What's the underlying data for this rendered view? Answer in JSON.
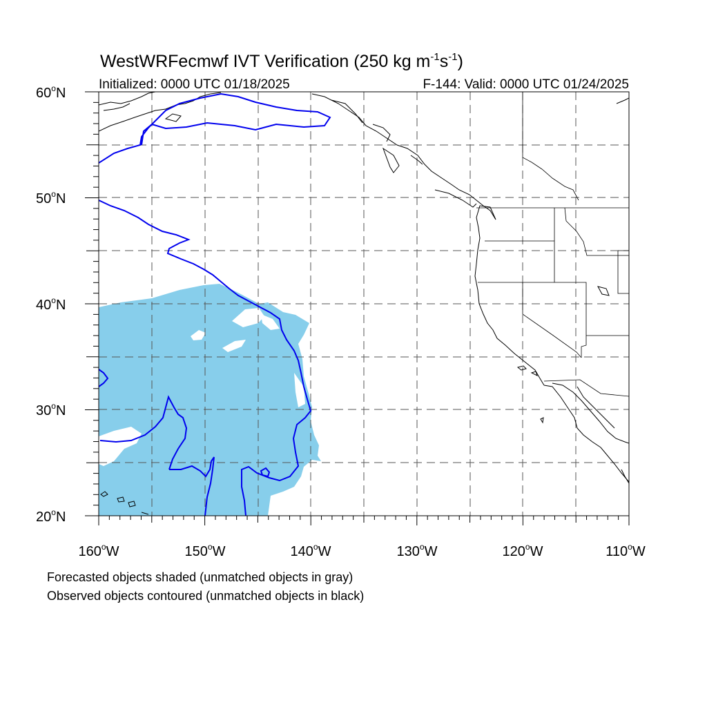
{
  "title": {
    "main_prefix": "WestWRFecmwf IVT Verification (250 kg m",
    "exp1": "-1",
    "mid": "s",
    "exp2": "-1",
    "close": ")"
  },
  "subtitle_left": "Initialized: 0000 UTC 01/18/2025",
  "subtitle_right": "F-144: Valid: 0000 UTC 01/24/2025",
  "lat_labels": [
    "60",
    "50",
    "40",
    "30",
    "20"
  ],
  "lat_suffix": "N",
  "lon_labels": [
    "160",
    "150",
    "140",
    "130",
    "120",
    "110"
  ],
  "lon_suffix": "W",
  "degree_symbol": "o",
  "notes": {
    "forecast": "Forecasted objects shaded (unmatched objects in gray)",
    "observed": "Observed objects contoured (unmatched objects in black)"
  },
  "colors": {
    "forecast_fill": "#87CEEB",
    "observed_contour": "#0000EE",
    "coast": "#000000",
    "grid": "#555555"
  },
  "map_extent": {
    "lon_min": -160,
    "lon_max": -110,
    "lat_min": 20,
    "lat_max": 60,
    "grid_step_deg": 5
  }
}
